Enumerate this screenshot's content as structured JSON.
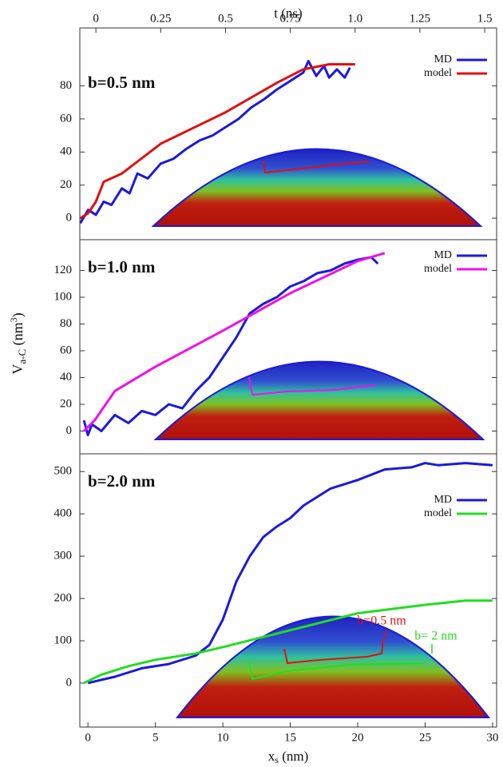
{
  "chart_data": [
    {
      "type": "line",
      "label": "b=0.5 nm",
      "x_label": "t (ns)",
      "xaxis": "top",
      "xlim": [
        -0.062,
        1.546
      ],
      "xticks": [
        0,
        0.25,
        0.5,
        0.75,
        {
          "value": 1,
          "label": "1.0"
        },
        1.25,
        1.5
      ],
      "ylim": [
        -13,
        115
      ],
      "yticks": [
        0,
        20,
        40,
        60,
        80
      ],
      "legend": "upper right",
      "series": [
        {
          "name": "MD",
          "color": "#1a1adc",
          "x": [
            -0.06,
            -0.03,
            0,
            0.03,
            0.06,
            0.1,
            0.13,
            0.16,
            0.2,
            0.25,
            0.3,
            0.35,
            0.4,
            0.45,
            0.5,
            0.55,
            0.6,
            0.65,
            0.7,
            0.75,
            0.8,
            0.82,
            0.85,
            0.88,
            0.9,
            0.93,
            0.96,
            0.98
          ],
          "values": [
            -3,
            5,
            2,
            10,
            8,
            18,
            15,
            27,
            24,
            33,
            36,
            42,
            47,
            50,
            55,
            60,
            67,
            72,
            78,
            83,
            88,
            95,
            86,
            92,
            85,
            90,
            85,
            91
          ]
        },
        {
          "name": "model",
          "color": "#e01010",
          "x": [
            -0.06,
            -0.03,
            0,
            0.03,
            0.1,
            0.25,
            0.5,
            0.7,
            0.8,
            0.9,
            1.0
          ],
          "values": [
            0,
            3,
            10,
            22,
            27,
            45,
            64,
            82,
            90,
            93,
            93
          ]
        }
      ]
    },
    {
      "type": "line",
      "label": "b=1.0 nm",
      "y_label": [
        "V",
        "a-C",
        " (nm",
        "3",
        ")"
      ],
      "xlim": [
        -0.6,
        30.3
      ],
      "ylim": [
        -17,
        143
      ],
      "yticks": [
        0,
        20,
        40,
        60,
        80,
        100,
        120
      ],
      "legend": "upper right",
      "series": [
        {
          "name": "MD",
          "color": "#1a1adc",
          "x": [
            -0.3,
            0,
            0.3,
            1,
            2,
            3,
            4,
            5,
            6,
            7,
            8,
            9,
            10,
            11,
            12,
            13,
            14,
            15,
            16,
            17,
            18,
            19,
            20,
            21,
            21.5
          ],
          "values": [
            8,
            -3,
            5,
            0,
            12,
            6,
            15,
            12,
            20,
            17,
            30,
            40,
            55,
            70,
            88,
            95,
            100,
            108,
            112,
            118,
            120,
            125,
            128,
            130,
            125
          ]
        },
        {
          "name": "model",
          "color": "#ee10ee",
          "x": [
            -0.3,
            0.5,
            2,
            5,
            10,
            15,
            20,
            22
          ],
          "values": [
            0,
            8,
            30,
            48,
            75,
            103,
            127,
            133
          ]
        }
      ]
    },
    {
      "type": "line",
      "label": "b=2.0 nm",
      "x_label": [
        "x",
        "s",
        " (nm)"
      ],
      "xaxis": "bottom",
      "xlim": [
        -0.6,
        30.3
      ],
      "xticks": [
        0,
        5,
        10,
        15,
        20,
        25,
        30
      ],
      "ylim": [
        -104,
        542
      ],
      "yticks": [
        0,
        100,
        200,
        300,
        400,
        500
      ],
      "legend": "upper right",
      "annotations": [
        "b=0.5 nm",
        "b= 2 nm"
      ],
      "series": [
        {
          "name": "MD",
          "color": "#1a1adc",
          "x": [
            0,
            2,
            4,
            6,
            8,
            9,
            10,
            11,
            12,
            13,
            14,
            15,
            16,
            17,
            18,
            20,
            22,
            24,
            25,
            26,
            28,
            30
          ],
          "values": [
            0,
            15,
            35,
            45,
            65,
            90,
            150,
            240,
            300,
            345,
            370,
            390,
            420,
            440,
            460,
            480,
            505,
            510,
            520,
            515,
            520,
            515
          ]
        },
        {
          "name": "model",
          "color": "#22dd22",
          "x": [
            -0.3,
            1,
            3,
            5,
            8,
            10,
            15,
            20,
            25,
            28,
            30
          ],
          "values": [
            0,
            20,
            40,
            55,
            70,
            85,
            125,
            165,
            185,
            195,
            195
          ]
        }
      ]
    }
  ]
}
